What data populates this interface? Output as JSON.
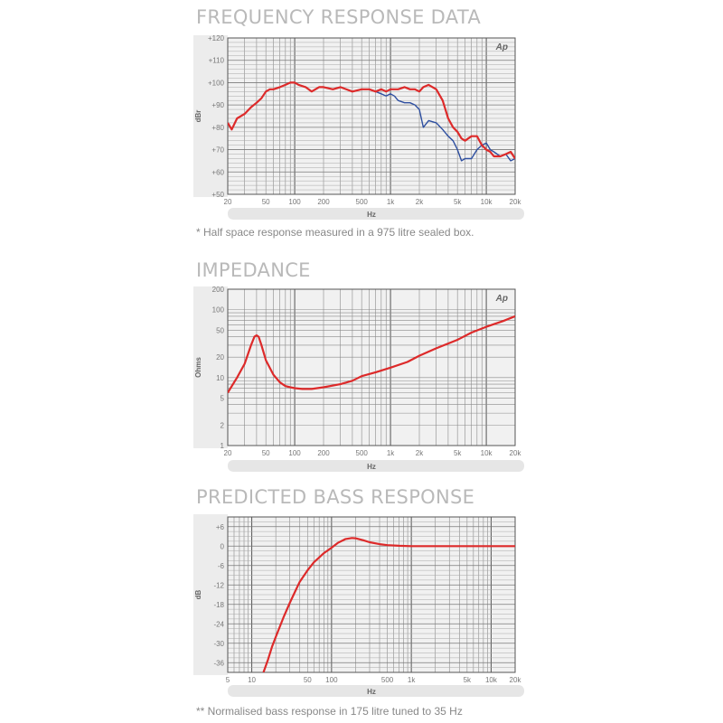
{
  "chart_data": [
    {
      "type": "line",
      "title": "FREQUENCY RESPONSE DATA",
      "xlabel": "Hz",
      "ylabel": "dBr",
      "xscale": "log",
      "xlim": [
        20,
        20000
      ],
      "ylim": [
        50,
        120
      ],
      "xticks": [
        {
          "value": 20,
          "label": "20"
        },
        {
          "value": 50,
          "label": "50"
        },
        {
          "value": 100,
          "label": "100"
        },
        {
          "value": 200,
          "label": "200"
        },
        {
          "value": 500,
          "label": "500"
        },
        {
          "value": 1000,
          "label": "1k"
        },
        {
          "value": 2000,
          "label": "2k"
        },
        {
          "value": 5000,
          "label": "5k"
        },
        {
          "value": 10000,
          "label": "10k"
        },
        {
          "value": 20000,
          "label": "20k"
        }
      ],
      "yticks": [
        {
          "value": 50,
          "label": "+50"
        },
        {
          "value": 60,
          "label": "+60"
        },
        {
          "value": 70,
          "label": "+70"
        },
        {
          "value": 80,
          "label": "+80"
        },
        {
          "value": 90,
          "label": "+90"
        },
        {
          "value": 100,
          "label": "+100"
        },
        {
          "value": 110,
          "label": "+110"
        },
        {
          "value": 120,
          "label": "+120"
        }
      ],
      "grid": true,
      "logo": "Ap",
      "note": "* Half space response measured in a 975 litre sealed box.",
      "series": [
        {
          "color": "#2e4fa0",
          "x": [
            20,
            22,
            25,
            30,
            35,
            40,
            45,
            50,
            55,
            60,
            70,
            80,
            90,
            100,
            110,
            130,
            150,
            180,
            200,
            250,
            300,
            400,
            500,
            600,
            700,
            800,
            900,
            1000,
            1100,
            1200,
            1400,
            1600,
            1800,
            2000,
            2200,
            2500,
            3000,
            3500,
            4000,
            4500,
            5000,
            5500,
            6000,
            7000,
            8000,
            9000,
            10000,
            11000,
            12000,
            14000,
            16000,
            18000,
            20000
          ],
          "y": [
            82,
            79,
            84,
            86,
            89,
            91,
            93,
            96,
            97,
            97,
            98,
            99,
            100,
            100,
            99,
            98,
            96,
            98,
            98,
            97,
            98,
            96,
            97,
            97,
            96,
            95,
            94,
            95,
            94,
            92,
            91,
            91,
            90,
            88,
            80,
            83,
            82,
            79,
            76,
            74,
            70,
            65,
            66,
            66,
            70,
            72,
            73,
            70,
            69,
            67,
            68,
            65,
            66
          ]
        },
        {
          "color": "#dd2a2a",
          "x": [
            20,
            22,
            25,
            30,
            35,
            40,
            45,
            50,
            55,
            60,
            70,
            80,
            90,
            100,
            110,
            130,
            150,
            180,
            200,
            250,
            300,
            400,
            500,
            600,
            700,
            800,
            900,
            1000,
            1100,
            1200,
            1400,
            1600,
            1800,
            2000,
            2200,
            2500,
            3000,
            3500,
            4000,
            4500,
            5000,
            5500,
            6000,
            7000,
            8000,
            9000,
            10000,
            11000,
            12000,
            14000,
            16000,
            18000,
            20000
          ],
          "y": [
            82,
            79,
            84,
            86,
            89,
            91,
            93,
            96,
            97,
            97,
            98,
            99,
            100,
            100,
            99,
            98,
            96,
            98,
            98,
            97,
            98,
            96,
            97,
            97,
            96,
            97,
            96,
            97,
            97,
            97,
            98,
            97,
            97,
            96,
            98,
            99,
            97,
            92,
            84,
            80,
            78,
            75,
            74,
            76,
            76,
            72,
            70,
            69,
            67,
            67,
            68,
            69,
            66
          ]
        }
      ]
    },
    {
      "type": "line",
      "title": "IMPEDANCE",
      "xlabel": "Hz",
      "ylabel": "Ohms",
      "xscale": "log",
      "yscale": "log",
      "xlim": [
        20,
        20000
      ],
      "ylim": [
        1,
        200
      ],
      "xticks": [
        {
          "value": 20,
          "label": "20"
        },
        {
          "value": 50,
          "label": "50"
        },
        {
          "value": 100,
          "label": "100"
        },
        {
          "value": 200,
          "label": "200"
        },
        {
          "value": 500,
          "label": "500"
        },
        {
          "value": 1000,
          "label": "1k"
        },
        {
          "value": 2000,
          "label": "2k"
        },
        {
          "value": 5000,
          "label": "5k"
        },
        {
          "value": 10000,
          "label": "10k"
        },
        {
          "value": 20000,
          "label": "20k"
        }
      ],
      "yticks": [
        {
          "value": 1,
          "label": "1"
        },
        {
          "value": 2,
          "label": "2"
        },
        {
          "value": 5,
          "label": "5"
        },
        {
          "value": 10,
          "label": "10"
        },
        {
          "value": 20,
          "label": "20"
        },
        {
          "value": 50,
          "label": "50"
        },
        {
          "value": 100,
          "label": "100"
        },
        {
          "value": 200,
          "label": "200"
        }
      ],
      "grid": true,
      "logo": "Ap",
      "series": [
        {
          "color": "#dd2a2a",
          "x": [
            20,
            25,
            30,
            35,
            38,
            40,
            42,
            45,
            50,
            60,
            70,
            80,
            90,
            100,
            120,
            150,
            200,
            300,
            400,
            500,
            700,
            1000,
            1500,
            2000,
            3000,
            5000,
            7000,
            10000,
            15000,
            20000
          ],
          "y": [
            6,
            10,
            16,
            30,
            40,
            42,
            40,
            30,
            18,
            11,
            8.5,
            7.5,
            7.2,
            7,
            6.8,
            6.8,
            7.2,
            8,
            9,
            10.5,
            12,
            14,
            17,
            21,
            27,
            36,
            46,
            56,
            68,
            80
          ]
        }
      ]
    },
    {
      "type": "line",
      "title": "PREDICTED BASS RESPONSE",
      "xlabel": "Hz",
      "ylabel": "dB",
      "xscale": "log",
      "xlim": [
        5,
        20000
      ],
      "ylim": [
        -39,
        9
      ],
      "xticks": [
        {
          "value": 5,
          "label": "5"
        },
        {
          "value": 10,
          "label": "10"
        },
        {
          "value": 50,
          "label": "50"
        },
        {
          "value": 100,
          "label": "100"
        },
        {
          "value": 500,
          "label": "500"
        },
        {
          "value": 1000,
          "label": "1k"
        },
        {
          "value": 5000,
          "label": "5k"
        },
        {
          "value": 10000,
          "label": "10k"
        },
        {
          "value": 20000,
          "label": "20k"
        }
      ],
      "yticks": [
        {
          "value": 6,
          "label": "+6"
        },
        {
          "value": 0,
          "label": "0"
        },
        {
          "value": -6,
          "label": "-6"
        },
        {
          "value": -12,
          "label": "-12"
        },
        {
          "value": -18,
          "label": "-18"
        },
        {
          "value": -24,
          "label": "-24"
        },
        {
          "value": -30,
          "label": "-30"
        },
        {
          "value": -36,
          "label": "-36"
        }
      ],
      "grid": true,
      "note": "** Normalised bass response in 175 litre tuned to 35 Hz",
      "series": [
        {
          "color": "#dd2a2a",
          "x": [
            14,
            16,
            18,
            20,
            25,
            30,
            35,
            40,
            50,
            60,
            70,
            80,
            100,
            120,
            150,
            180,
            200,
            250,
            300,
            400,
            500,
            700,
            1000,
            2000,
            5000,
            10000,
            20000
          ],
          "y": [
            -39,
            -35,
            -31,
            -28,
            -22,
            -17.5,
            -14,
            -11,
            -7.5,
            -5,
            -3.5,
            -2.2,
            -0.5,
            1,
            2.2,
            2.5,
            2.4,
            1.8,
            1.2,
            0.6,
            0.3,
            0.1,
            0,
            0,
            0,
            0,
            0
          ]
        }
      ]
    }
  ]
}
